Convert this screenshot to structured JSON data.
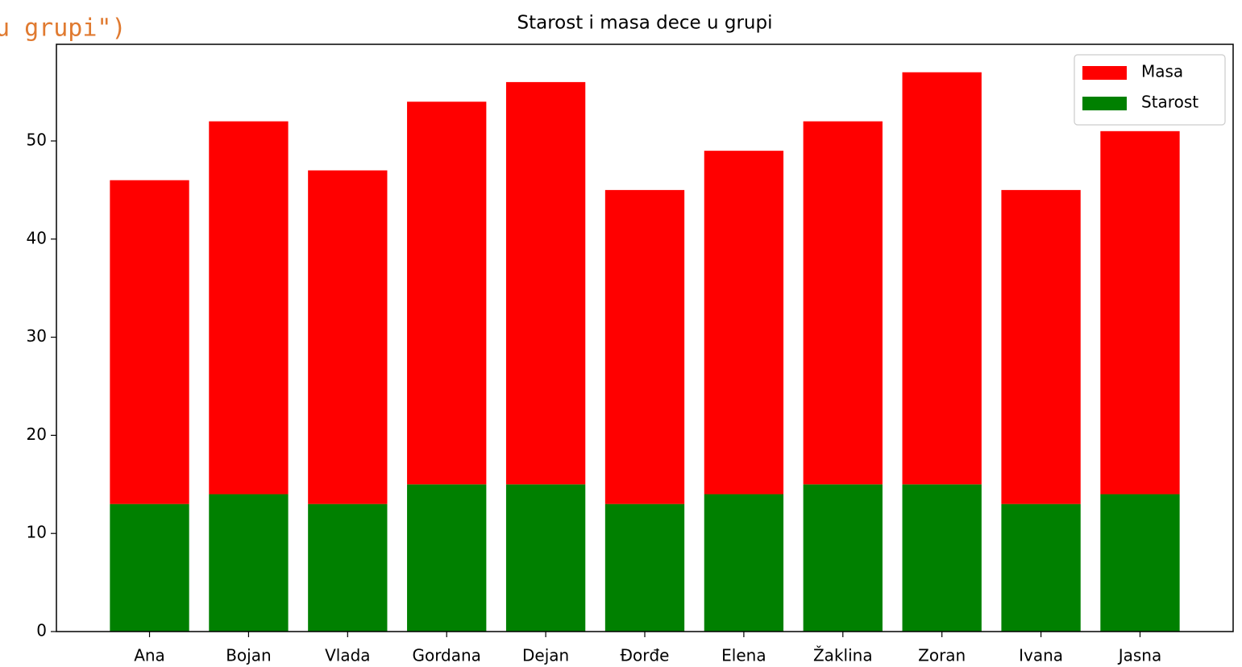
{
  "code_fragment": "u grupi\")",
  "chart_data": {
    "type": "stacked_bar",
    "title": "Starost i masa dece u grupi",
    "categories": [
      "Ana",
      "Bojan",
      "Vlada",
      "Gordana",
      "Dejan",
      "Đorđe",
      "Elena",
      "Žaklina",
      "Zoran",
      "Ivana",
      "Jasna"
    ],
    "series": [
      {
        "name": "Masa",
        "color": "#ff0000",
        "values": [
          33,
          38,
          34,
          39,
          41,
          32,
          35,
          37,
          42,
          32,
          37
        ]
      },
      {
        "name": "Starost",
        "color": "#008000",
        "values": [
          13,
          14,
          13,
          15,
          15,
          13,
          14,
          15,
          15,
          13,
          14
        ]
      }
    ],
    "ylim": [
      0,
      59.85
    ],
    "yticks": [
      0,
      10,
      20,
      30,
      40,
      50
    ],
    "legend": "upper right"
  }
}
